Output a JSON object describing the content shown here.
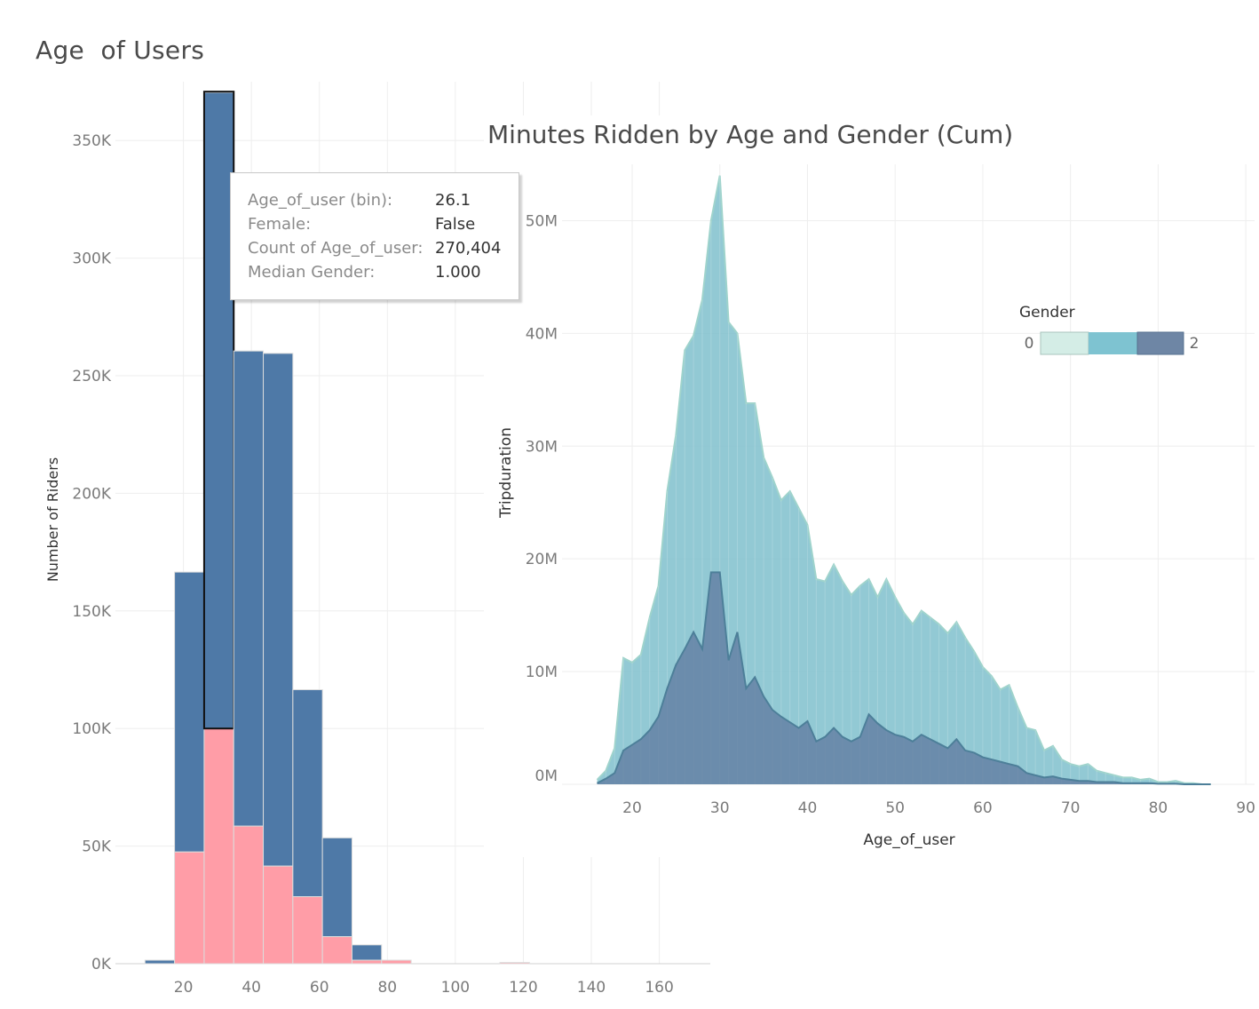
{
  "title": "Age  of Users",
  "histogram": {
    "ylabel": "Number of Riders",
    "y_ticks": [
      "0K",
      "50K",
      "100K",
      "150K",
      "200K",
      "250K",
      "300K",
      "350K"
    ],
    "x_ticks": [
      "20",
      "40",
      "60",
      "80",
      "100",
      "120",
      "140",
      "160"
    ]
  },
  "overlay": {
    "title": "Minutes Ridden by Age and Gender (Cum)",
    "xlabel": "Age_of_user",
    "ylabel": "Tripduration",
    "y_ticks": [
      "0M",
      "10M",
      "20M",
      "30M",
      "40M",
      "50M"
    ],
    "x_ticks": [
      "20",
      "30",
      "40",
      "50",
      "60",
      "70",
      "80",
      "90"
    ],
    "legend": {
      "title": "Gender",
      "min_label": "0",
      "max_label": "2"
    }
  },
  "tooltip": {
    "rows": [
      {
        "key": "Age_of_user (bin):",
        "value": "26.1"
      },
      {
        "key": "Female:",
        "value": "False"
      },
      {
        "key": "Count of Age_of_user:",
        "value": "270,404"
      },
      {
        "key": "Median Gender:",
        "value": "1.000"
      }
    ]
  },
  "colors": {
    "male": "#4e79a7",
    "female": "#ff9da7",
    "overlay_total": "#7fbfcc",
    "overlay_male": "#607ba0",
    "overlay_female": "#4d7f99",
    "legend_low": "#d4ede6",
    "legend_mid": "#7ec3d1",
    "legend_high": "#6e86a5",
    "grid": "#eeeeee"
  },
  "chart_data": [
    {
      "type": "bar",
      "stacked": true,
      "bin_width": 8.7,
      "bins": [
        8.7,
        17.4,
        26.1,
        34.8,
        43.5,
        52.2,
        60.9,
        69.6,
        78.3,
        113.1
      ],
      "series": [
        {
          "name": "False",
          "values": [
            1500,
            119000,
            270404,
            202000,
            218000,
            88000,
            42000,
            6500,
            0,
            0
          ]
        },
        {
          "name": "True",
          "values": [
            0,
            47500,
            100000,
            58500,
            41500,
            28500,
            11500,
            1500,
            1500,
            500
          ]
        }
      ],
      "highlighted_bin": 26.1,
      "ylabel": "Number of Riders",
      "xlim": [
        0,
        175
      ],
      "ylim": [
        0,
        375000
      ],
      "grid": true
    },
    {
      "type": "area",
      "title": "Minutes Ridden by Age and Gender (Cum)",
      "xlabel": "Age_of_user",
      "ylabel": "Tripduration",
      "xlim": [
        12,
        91
      ],
      "ylim": [
        0,
        55000000
      ],
      "legend": "top-right",
      "grid": true,
      "series": [
        {
          "name": "0",
          "x": [
            16,
            17,
            18,
            19,
            20,
            21,
            22,
            23,
            24,
            25,
            26,
            27,
            28,
            29,
            30,
            31,
            32,
            33,
            34,
            35,
            36,
            37,
            38,
            39,
            40,
            41,
            42,
            43,
            44,
            45,
            46,
            47,
            48,
            49,
            50,
            51,
            52,
            53,
            54,
            55,
            56,
            57,
            58,
            59,
            60,
            61,
            62,
            63,
            64,
            65,
            66,
            67,
            68,
            69,
            70,
            71,
            72,
            73,
            74,
            75,
            76,
            77,
            78,
            79,
            80,
            81,
            82,
            83,
            84,
            85,
            86
          ],
          "y": [
            0.4,
            1.2,
            3.2,
            11.2,
            10.8,
            11.5,
            14.8,
            17.6,
            26,
            31,
            38.5,
            39.8,
            43,
            50,
            54,
            41,
            40,
            33.8,
            33.8,
            29,
            27.2,
            25.2,
            26,
            24.5,
            23,
            18.2,
            18,
            19.5,
            18,
            16.8,
            17.6,
            18.2,
            16.6,
            18.2,
            16.6,
            15.2,
            14.2,
            15.4,
            14.8,
            14.2,
            13.4,
            14.4,
            13,
            11.8,
            10.4,
            9.6,
            8.4,
            8.8,
            6.8,
            5,
            4.8,
            3,
            3.4,
            2.2,
            1.8,
            1.6,
            1.8,
            1.2,
            1,
            0.8,
            0.6,
            0.6,
            0.4,
            0.5,
            0.2,
            0.2,
            0.3,
            0.1,
            0.1,
            0,
            0
          ]
        },
        {
          "name": "2",
          "x": [
            16,
            17,
            18,
            19,
            20,
            21,
            22,
            23,
            24,
            25,
            26,
            27,
            28,
            29,
            30,
            31,
            32,
            33,
            34,
            35,
            36,
            37,
            38,
            39,
            40,
            41,
            42,
            43,
            44,
            45,
            46,
            47,
            48,
            49,
            50,
            51,
            52,
            53,
            54,
            55,
            56,
            57,
            58,
            59,
            60,
            61,
            62,
            63,
            64,
            65,
            66,
            67,
            68,
            69,
            70,
            71,
            72,
            73,
            74,
            75,
            76,
            77,
            78,
            79,
            80,
            81,
            82,
            83,
            84,
            85,
            86
          ],
          "y": [
            0.1,
            0.5,
            1,
            3,
            3.5,
            4,
            4.8,
            6,
            8.5,
            10.6,
            12,
            13.5,
            12,
            18.8,
            18.8,
            11,
            13.5,
            8.5,
            9.5,
            7.8,
            6.6,
            6,
            5.5,
            5,
            5.6,
            3.8,
            4.2,
            5,
            4.2,
            3.8,
            4.2,
            6.2,
            5.4,
            4.8,
            4.4,
            4.2,
            3.8,
            4.4,
            4,
            3.6,
            3.2,
            4,
            3,
            2.8,
            2.4,
            2.2,
            2,
            1.8,
            1.6,
            1,
            0.8,
            0.6,
            0.7,
            0.5,
            0.4,
            0.3,
            0.3,
            0.2,
            0.2,
            0.2,
            0.1,
            0.1,
            0.1,
            0.1,
            0.05,
            0.05,
            0.05,
            0,
            0,
            0,
            0
          ]
        }
      ]
    }
  ]
}
